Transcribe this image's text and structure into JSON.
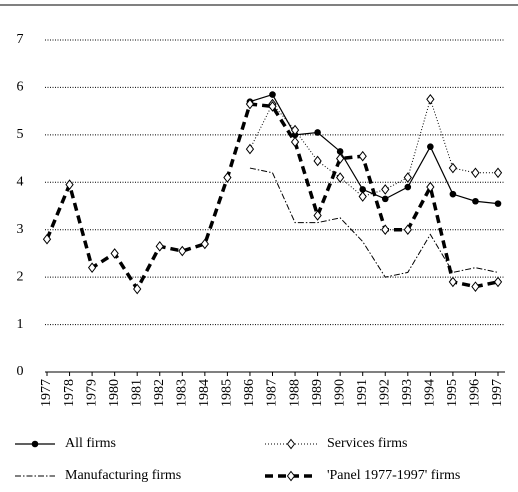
{
  "chart_data": {
    "type": "line",
    "categories": [
      "1977",
      "1978",
      "1979",
      "1980",
      "1981",
      "1982",
      "1983",
      "1984",
      "1985",
      "1986",
      "1987",
      "1988",
      "1989",
      "1990",
      "1991",
      "1992",
      "1993",
      "1994",
      "1995",
      "1996",
      "1997"
    ],
    "ylim": [
      0,
      7
    ],
    "yticks": [
      0,
      1,
      2,
      3,
      4,
      5,
      6,
      7
    ],
    "grid": true,
    "legend": "bottom",
    "series": [
      {
        "name": "All firms",
        "color": "#000000",
        "line_style": "solid",
        "marker": "circle",
        "values": [
          null,
          null,
          null,
          null,
          null,
          null,
          null,
          null,
          null,
          5.7,
          5.85,
          5.0,
          5.05,
          4.65,
          3.85,
          3.65,
          3.9,
          4.75,
          3.75,
          3.6,
          3.55
        ]
      },
      {
        "name": "Services firms",
        "color": "#000000",
        "line_style": "dotted",
        "marker": "diamond",
        "values": [
          null,
          null,
          null,
          null,
          null,
          null,
          null,
          null,
          null,
          4.7,
          5.65,
          5.1,
          4.45,
          4.1,
          3.7,
          3.85,
          4.1,
          5.75,
          4.3,
          4.2,
          4.2
        ]
      },
      {
        "name": "Manufacturing firms",
        "color": "#000000",
        "line_style": "dashdot",
        "marker": "none",
        "values": [
          null,
          null,
          null,
          null,
          null,
          null,
          null,
          null,
          null,
          4.3,
          4.2,
          3.15,
          3.15,
          3.25,
          2.75,
          2.0,
          2.1,
          2.9,
          2.1,
          2.2,
          2.1
        ]
      },
      {
        "name": "'Panel 1977-1997' firms",
        "color": "#000000",
        "line_style": "thickdash",
        "marker": "diamond",
        "values": [
          2.8,
          3.95,
          2.2,
          2.5,
          1.75,
          2.65,
          2.55,
          2.7,
          4.1,
          5.65,
          5.6,
          4.85,
          3.3,
          4.5,
          4.55,
          3.0,
          3.0,
          3.9,
          1.9,
          1.8,
          1.9
        ]
      }
    ]
  }
}
